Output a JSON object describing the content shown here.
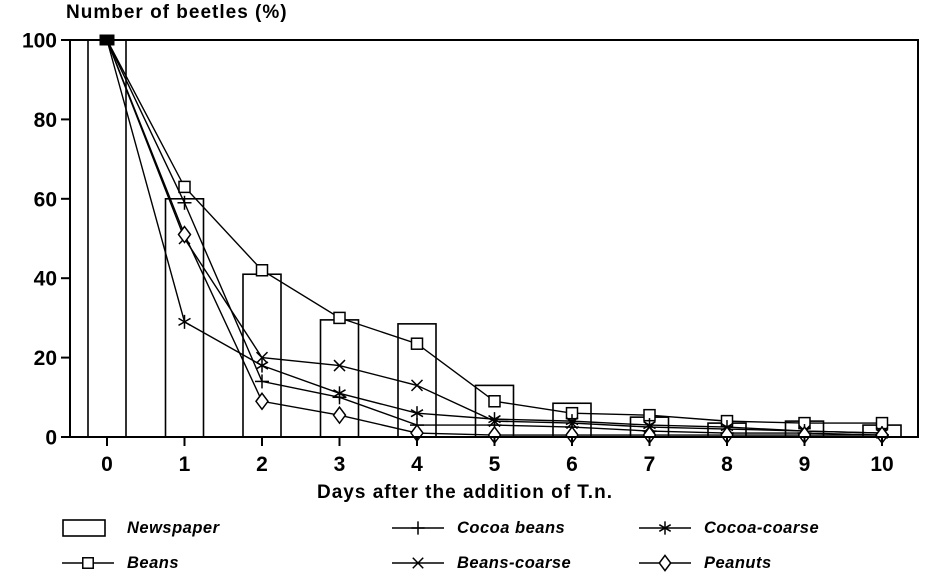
{
  "title": "Number of beetles (%)",
  "xlabel": "Days after the addition of T.n.",
  "colors": {
    "ink": "#000000",
    "paper": "#ffffff"
  },
  "chart_data": {
    "type": "combo-bar-line",
    "title": "Number of beetles (%)",
    "xlabel": "Days after the addition of T.n.",
    "ylabel": "",
    "x": [
      0,
      1,
      2,
      3,
      4,
      5,
      6,
      7,
      8,
      9,
      10
    ],
    "x_ticks": [
      "0",
      "1",
      "2",
      "3",
      "4",
      "5",
      "6",
      "7",
      "8",
      "9",
      "10"
    ],
    "y_ticks": [
      0,
      20,
      40,
      60,
      80,
      100
    ],
    "y_tick_labels": [
      "0",
      "20",
      "40",
      "60",
      "80",
      "100"
    ],
    "xlim": [
      -0.5,
      10.5
    ],
    "ylim": [
      0,
      100
    ],
    "grid": false,
    "frame": "full-box",
    "legend_position": "bottom",
    "origin_point_note": "all series start overlapping at day 0 = 100%, drawn as one filled square",
    "series": [
      {
        "name": "Newspaper",
        "type": "bar",
        "marker": "bar-rect",
        "values": [
          100,
          60,
          41,
          29.5,
          28.5,
          13,
          8.5,
          5,
          3.5,
          4,
          3
        ]
      },
      {
        "name": "Beans",
        "type": "line",
        "marker": "square",
        "values": [
          100,
          63,
          42,
          30,
          23.5,
          9,
          6,
          5.5,
          4,
          3.5,
          3.5
        ]
      },
      {
        "name": "Cocoa beans",
        "type": "line",
        "marker": "plus",
        "values": [
          100,
          59,
          14,
          10,
          3,
          3,
          2.5,
          1.5,
          1,
          1,
          0.5
        ]
      },
      {
        "name": "Beans-coarse",
        "type": "line",
        "marker": "x",
        "values": [
          100,
          50,
          20,
          18,
          13,
          4,
          3.5,
          2.5,
          2,
          1.5,
          1
        ]
      },
      {
        "name": "Cocoa-coarse",
        "type": "line",
        "marker": "asterisk",
        "values": [
          100,
          29,
          18,
          11,
          6,
          4.5,
          4,
          3,
          2.5,
          1.5,
          1
        ]
      },
      {
        "name": "Peanuts",
        "type": "line",
        "marker": "diamond",
        "values": [
          100,
          51,
          9,
          5.5,
          1,
          0.5,
          0.5,
          0.5,
          0.5,
          0.5,
          0.5
        ]
      }
    ]
  },
  "legend": {
    "items": [
      {
        "label": "Newspaper",
        "marker": "bar-rect",
        "row": 0,
        "col": 0
      },
      {
        "label": "Cocoa beans",
        "marker": "plus",
        "row": 0,
        "col": 1
      },
      {
        "label": "Cocoa-coarse",
        "marker": "asterisk",
        "row": 0,
        "col": 2
      },
      {
        "label": "Beans",
        "marker": "square",
        "row": 1,
        "col": 0
      },
      {
        "label": "Beans-coarse",
        "marker": "x",
        "row": 1,
        "col": 1
      },
      {
        "label": "Peanuts",
        "marker": "diamond",
        "row": 1,
        "col": 2
      }
    ]
  }
}
